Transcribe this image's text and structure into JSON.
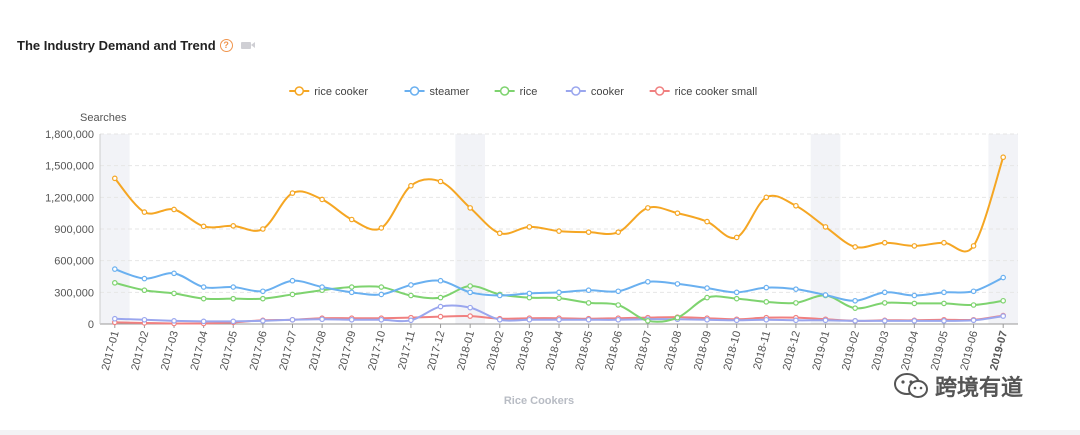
{
  "header": {
    "title": "The Industry Demand and Trend",
    "help_symbol": "?",
    "video_icon": "video-icon"
  },
  "watermark": {
    "text": "跨境有道"
  },
  "chart_data": {
    "type": "line",
    "title": "The Industry Demand and Trend",
    "ylabel": "Searches",
    "xlabel": "Rice Cookers",
    "ylim": [
      0,
      1800000
    ],
    "yticks": [
      0,
      300000,
      600000,
      900000,
      1200000,
      1500000,
      1800000
    ],
    "ytick_labels": [
      "0",
      "300,000",
      "600,000",
      "900,000",
      "1,200,000",
      "1,500,000",
      "1,800,000"
    ],
    "legend_position": "top-center",
    "grid": "horizontal-dashed",
    "highlighted_months": [
      "2017-01",
      "2018-01",
      "2019-01",
      "2019-07"
    ],
    "categories": [
      "2017-01",
      "2017-02",
      "2017-03",
      "2017-04",
      "2017-05",
      "2017-06",
      "2017-07",
      "2017-08",
      "2017-09",
      "2017-10",
      "2017-11",
      "2017-12",
      "2018-01",
      "2018-02",
      "2018-03",
      "2018-04",
      "2018-05",
      "2018-06",
      "2018-07",
      "2018-08",
      "2018-09",
      "2018-10",
      "2018-11",
      "2018-12",
      "2019-01",
      "2019-02",
      "2019-03",
      "2019-04",
      "2019-05",
      "2019-06",
      "2019-07"
    ],
    "series": [
      {
        "name": "rice cooker",
        "color": "#f5a623",
        "values": [
          1380000,
          1060000,
          1085000,
          925000,
          930000,
          900000,
          1240000,
          1180000,
          990000,
          910000,
          1310000,
          1350000,
          1100000,
          860000,
          920000,
          880000,
          870000,
          870000,
          1100000,
          1050000,
          970000,
          820000,
          1200000,
          1120000,
          920000,
          730000,
          770000,
          740000,
          770000,
          740000,
          1580000
        ]
      },
      {
        "name": "steamer",
        "color": "#6ab0f0",
        "values": [
          520000,
          430000,
          480000,
          350000,
          350000,
          310000,
          410000,
          350000,
          300000,
          280000,
          370000,
          410000,
          300000,
          270000,
          290000,
          300000,
          320000,
          310000,
          400000,
          380000,
          340000,
          300000,
          345000,
          330000,
          275000,
          220000,
          300000,
          270000,
          300000,
          310000,
          440000
        ]
      },
      {
        "name": "rice",
        "color": "#7ed36f",
        "values": [
          390000,
          320000,
          290000,
          240000,
          240000,
          240000,
          280000,
          320000,
          350000,
          350000,
          270000,
          250000,
          360000,
          280000,
          250000,
          245000,
          200000,
          180000,
          30000,
          60000,
          250000,
          240000,
          210000,
          200000,
          270000,
          150000,
          200000,
          195000,
          195000,
          180000,
          220000
        ]
      },
      {
        "name": "cooker",
        "color": "#9aa6ee",
        "values": [
          50000,
          40000,
          30000,
          25000,
          25000,
          30000,
          40000,
          45000,
          40000,
          40000,
          35000,
          165000,
          155000,
          40000,
          40000,
          40000,
          40000,
          40000,
          45000,
          45000,
          40000,
          35000,
          40000,
          35000,
          35000,
          30000,
          30000,
          30000,
          30000,
          35000,
          75000
        ]
      },
      {
        "name": "rice cooker small",
        "color": "#f08080",
        "values": [
          15000,
          10000,
          5000,
          5000,
          15000,
          35000,
          40000,
          55000,
          55000,
          55000,
          60000,
          70000,
          75000,
          50000,
          55000,
          55000,
          50000,
          55000,
          60000,
          65000,
          55000,
          45000,
          60000,
          60000,
          45000,
          30000,
          35000,
          35000,
          40000,
          40000,
          80000
        ]
      }
    ]
  }
}
